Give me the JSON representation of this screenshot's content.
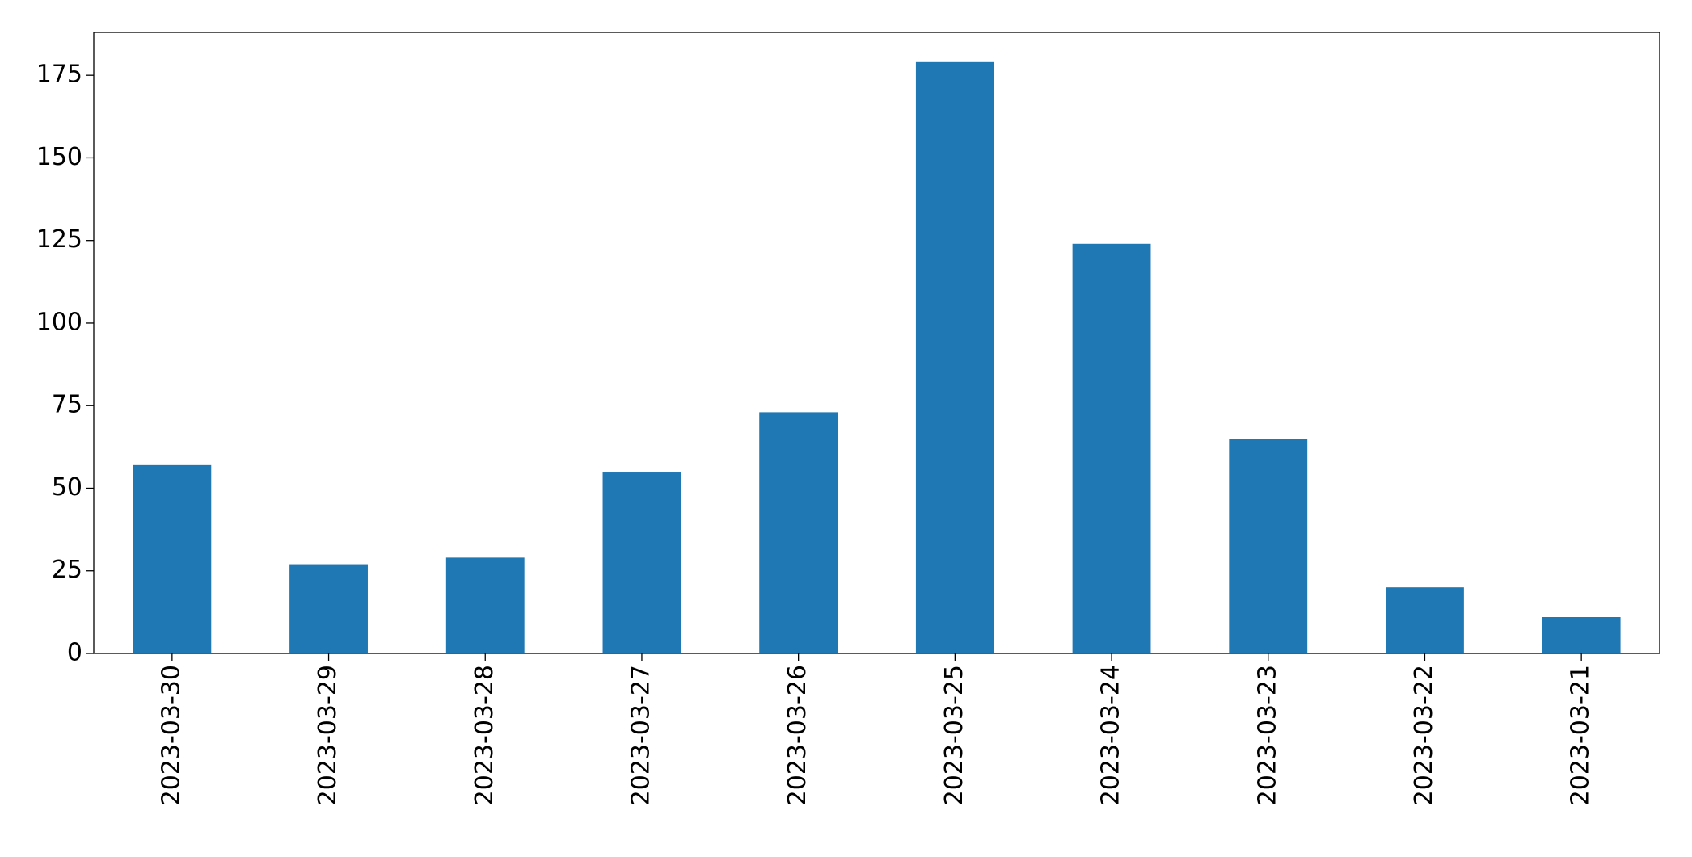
{
  "chart_data": {
    "type": "bar",
    "categories": [
      "2023-03-30",
      "2023-03-29",
      "2023-03-28",
      "2023-03-27",
      "2023-03-26",
      "2023-03-25",
      "2023-03-24",
      "2023-03-23",
      "2023-03-22",
      "2023-03-21"
    ],
    "values": [
      57,
      27,
      29,
      55,
      73,
      179,
      124,
      65,
      20,
      11
    ],
    "color": "#1f77b4",
    "ylim": [
      0,
      188
    ],
    "yticks": [
      0,
      25,
      50,
      75,
      100,
      125,
      150,
      175
    ],
    "grid": false
  }
}
